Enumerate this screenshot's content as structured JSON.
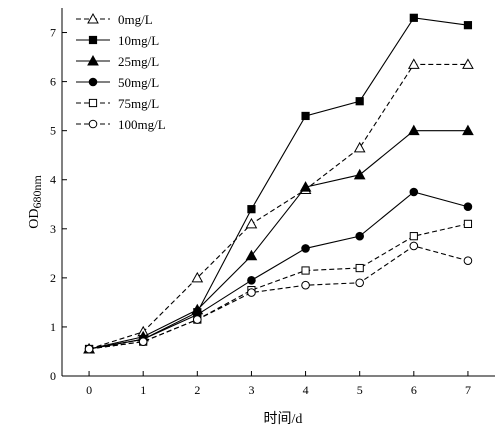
{
  "chart_data": {
    "type": "line",
    "xlabel": "时间/d",
    "ylabel": {
      "main": "OD",
      "sub": "680nm"
    },
    "x": [
      0,
      1,
      2,
      3,
      4,
      5,
      6,
      7
    ],
    "xlim": [
      -0.5,
      7.5
    ],
    "ylim": [
      0,
      7.5
    ],
    "xticks": [
      "0",
      "1",
      "2",
      "3",
      "4",
      "5",
      "6",
      "7"
    ],
    "yticks": [
      "0",
      "1",
      "2",
      "3",
      "4",
      "5",
      "6",
      "7"
    ],
    "grid": false,
    "legend_position": "top-left",
    "series": [
      {
        "name": "0mg/L",
        "marker": "triangle-open",
        "dashed": true,
        "values": [
          0.55,
          0.9,
          2.0,
          3.1,
          3.8,
          4.65,
          6.35,
          6.35
        ]
      },
      {
        "name": "10mg/L",
        "marker": "square-filled",
        "dashed": false,
        "values": [
          0.55,
          0.75,
          1.3,
          3.4,
          5.3,
          5.6,
          7.3,
          7.15
        ]
      },
      {
        "name": "25mg/L",
        "marker": "triangle-filled",
        "dashed": false,
        "values": [
          0.55,
          0.8,
          1.35,
          2.45,
          3.85,
          4.1,
          5.0,
          5.0
        ]
      },
      {
        "name": "50mg/L",
        "marker": "circle-filled",
        "dashed": false,
        "values": [
          0.55,
          0.75,
          1.25,
          1.95,
          2.6,
          2.85,
          3.75,
          3.45
        ]
      },
      {
        "name": "75mg/L",
        "marker": "square-open",
        "dashed": true,
        "values": [
          0.55,
          0.7,
          1.15,
          1.75,
          2.15,
          2.2,
          2.85,
          3.1
        ]
      },
      {
        "name": "100mg/L",
        "marker": "circle-open",
        "dashed": true,
        "values": [
          0.55,
          0.7,
          1.15,
          1.7,
          1.85,
          1.9,
          2.65,
          2.35
        ]
      }
    ]
  }
}
